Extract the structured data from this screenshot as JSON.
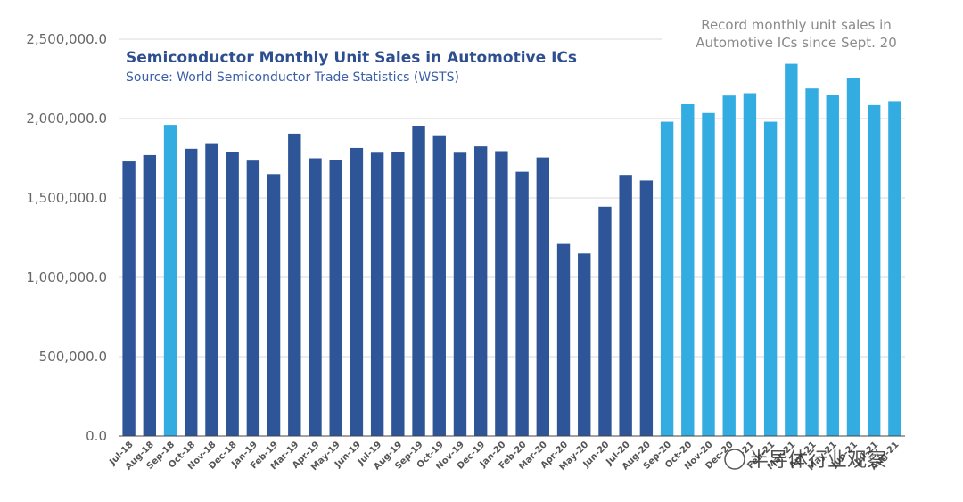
{
  "chart_data": {
    "type": "bar",
    "title": "Semiconductor Monthly Unit Sales in Automotive ICs",
    "subtitle": "Source: World Semiconductor Trade Statistics (WSTS)",
    "annotation_lines": [
      "Record monthly unit sales in",
      "Automotive ICs since Sept. 20"
    ],
    "ylim": [
      0,
      2500000
    ],
    "yticks": [
      0,
      500000,
      1000000,
      1500000,
      2000000,
      2500000
    ],
    "ytick_labels": [
      "0.0",
      "500,000.0",
      "1,000,000.0",
      "1,500,000.0",
      "2,000,000.0",
      "2,500,000.0"
    ],
    "grid": true,
    "categories": [
      "Jul-18",
      "Aug-18",
      "Sep-18",
      "Oct-18",
      "Nov-18",
      "Dec-18",
      "Jan-19",
      "Feb-19",
      "Mar-19",
      "Apr-19",
      "May-19",
      "Jun-19",
      "Jul-19",
      "Aug-19",
      "Sep-19",
      "Oct-19",
      "Nov-19",
      "Dec-19",
      "Jan-20",
      "Feb-20",
      "Mar-20",
      "Apr-20",
      "May-20",
      "Jun-20",
      "Jul-20",
      "Aug-20",
      "Sep-20",
      "Oct-20",
      "Nov-20",
      "Dec-20",
      "Jan-21",
      "Feb-21",
      "Mar-21",
      "Apr-21",
      "May-21",
      "Jun-21",
      "Jul-21",
      "Aug-21"
    ],
    "values": [
      1730000,
      1770000,
      1960000,
      1810000,
      1845000,
      1790000,
      1735000,
      1650000,
      1905000,
      1750000,
      1740000,
      1815000,
      1785000,
      1790000,
      1955000,
      1895000,
      1785000,
      1825000,
      1795000,
      1665000,
      1755000,
      1210000,
      1150000,
      1445000,
      1645000,
      1610000,
      1980000,
      2090000,
      2035000,
      2145000,
      2160000,
      1980000,
      2345000,
      2190000,
      2150000,
      2255000,
      2085000,
      2110000
    ],
    "highlight_indices": [
      2,
      26,
      27,
      28,
      29,
      30,
      31,
      32,
      33,
      34,
      35,
      36,
      37
    ],
    "colors": {
      "base": "#2e5597",
      "highlight": "#33ace2",
      "grid": "#d9d9d9",
      "axis": "#444444"
    },
    "watermark": "半导体行业观察"
  }
}
